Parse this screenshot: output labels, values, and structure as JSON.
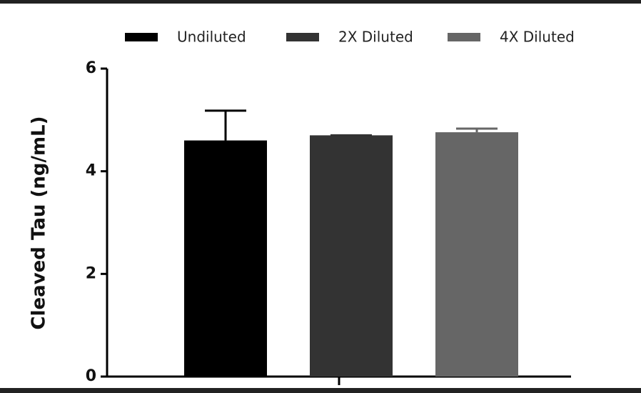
{
  "chart_data": {
    "type": "bar",
    "y_label": "Cleaved Tau (ng/mL)",
    "categories": [
      null
    ],
    "series": [
      {
        "name": "Undiluted",
        "color": "#000000",
        "values": [
          4.6
        ],
        "errors": [
          0.58
        ]
      },
      {
        "name": "2X Diluted",
        "color": "#333333",
        "values": [
          4.7
        ],
        "errors": [
          0
        ]
      },
      {
        "name": "4X Diluted",
        "color": "#666666",
        "values": [
          4.76
        ],
        "errors": [
          0.07
        ]
      }
    ],
    "ylim": [
      0,
      6
    ],
    "yticks": [
      0,
      2,
      4,
      6
    ],
    "legend": "top"
  }
}
